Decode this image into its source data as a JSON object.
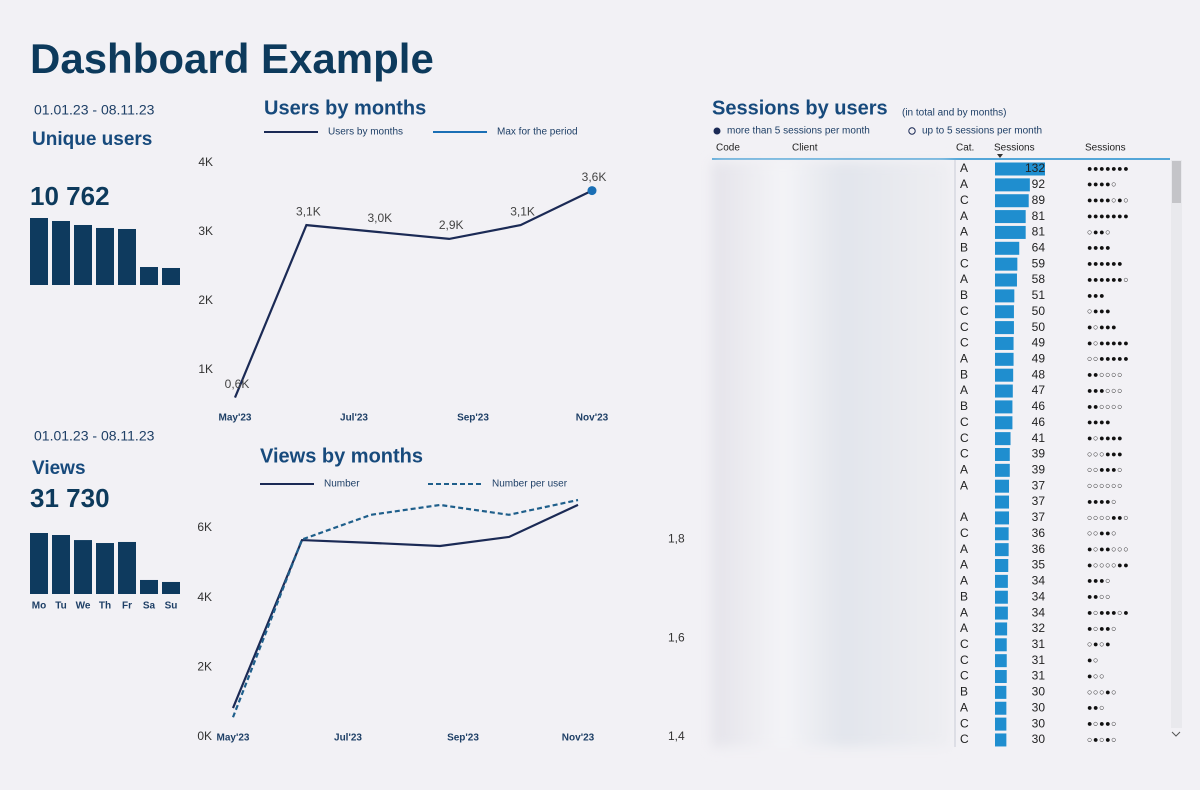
{
  "title": "Dashboard Example",
  "kpis": [
    {
      "period": "01.01.23 - 08.11.23",
      "label": "Unique users",
      "value": "10 762"
    },
    {
      "period": "01.01.23 - 08.11.23",
      "label": "Views",
      "value": "31 730"
    }
  ],
  "chart_data": [
    {
      "type": "bar",
      "values": [
        2127,
        2032,
        1905,
        1810,
        1778,
        571,
        540
      ],
      "color": "#0e3a5e"
    },
    {
      "type": "line",
      "title": "Users by months",
      "x": [
        0,
        1.2,
        2.4,
        3.6,
        4.8,
        6
      ],
      "xlim": [
        0,
        6
      ],
      "xticks": [
        {
          "value": 0,
          "label": "May'23"
        },
        {
          "value": 2,
          "label": "Jul'23"
        },
        {
          "value": 4,
          "label": "Sep'23"
        },
        {
          "value": 6,
          "label": "Nov'23"
        }
      ],
      "ylim": [
        500,
        4000
      ],
      "yticks": [
        {
          "value": 1000,
          "label": "1K"
        },
        {
          "value": 2000,
          "label": "2K"
        },
        {
          "value": 3000,
          "label": "3K"
        },
        {
          "value": 4000,
          "label": "4K"
        }
      ],
      "series": [
        {
          "name": "Users by months",
          "color": "#1b2a55",
          "values": [
            600,
            3100,
            3000,
            2900,
            3100,
            3600
          ],
          "value_labels": [
            "0,6K",
            "3,1K",
            "3,0K",
            "2,9K",
            "3,1K",
            "3,6K"
          ]
        },
        {
          "name": "Max for the period",
          "color": "#1a6fb5",
          "marker": true,
          "values": [
            null,
            null,
            null,
            null,
            null,
            3600
          ]
        }
      ]
    },
    {
      "type": "bar",
      "categories": [
        "Mo",
        "Tu",
        "We",
        "Th",
        "Fr",
        "Sa",
        "Su"
      ],
      "values": [
        6390,
        6180,
        5650,
        5340,
        5450,
        1470,
        1260
      ],
      "color": "#0e3a5e"
    },
    {
      "type": "line",
      "title": "Views by months",
      "x": [
        0,
        1.2,
        2.4,
        3.6,
        4.8,
        6
      ],
      "xlim": [
        0,
        6
      ],
      "xticks": [
        {
          "value": 0,
          "label": "May'23"
        },
        {
          "value": 2,
          "label": "Jul'23"
        },
        {
          "value": 4,
          "label": "Sep'23"
        },
        {
          "value": 6,
          "label": "Nov'23"
        }
      ],
      "ylim": [
        0,
        6800
      ],
      "yticks": [
        {
          "value": 0,
          "label": "0K"
        },
        {
          "value": 2000,
          "label": "2K"
        },
        {
          "value": 4000,
          "label": "4K"
        },
        {
          "value": 6000,
          "label": "6K"
        }
      ],
      "y2lim": [
        1.4,
        1.88
      ],
      "y2ticks": [
        {
          "value": 1.4,
          "label": "1,4"
        },
        {
          "value": 1.6,
          "label": "1,6"
        },
        {
          "value": 1.8,
          "label": "1,8"
        }
      ],
      "series": [
        {
          "name": "Number",
          "color": "#1b2a55",
          "values": [
            830,
            5650,
            5570,
            5480,
            5740,
            6660
          ]
        },
        {
          "name": "Number per user",
          "color": "#1f5f8b",
          "dashed": true,
          "axis": "y2",
          "values": [
            1.44,
            1.8,
            1.85,
            1.87,
            1.85,
            1.88
          ]
        }
      ]
    }
  ],
  "table": {
    "title": "Sessions by users",
    "subtitle": "(in total and by months)",
    "legend": [
      "more than 5 sessions per month",
      "up to 5 sessions per month"
    ],
    "columns": [
      "Code",
      "Client",
      "Cat.",
      "Sessions",
      "Sessions"
    ],
    "bar_color": "#1f8ecf",
    "rows": [
      {
        "cat": "A",
        "sessions": 132,
        "months": "●●●●●●●"
      },
      {
        "cat": "A",
        "sessions": 92,
        "months": "●●●●○"
      },
      {
        "cat": "C",
        "sessions": 89,
        "months": "●●●●○●○"
      },
      {
        "cat": "A",
        "sessions": 81,
        "months": "●●●●●●●"
      },
      {
        "cat": "A",
        "sessions": 81,
        "months": "○●●○"
      },
      {
        "cat": "B",
        "sessions": 64,
        "months": "●●●●"
      },
      {
        "cat": "C",
        "sessions": 59,
        "months": "●●●●●●"
      },
      {
        "cat": "A",
        "sessions": 58,
        "months": "●●●●●●○"
      },
      {
        "cat": "B",
        "sessions": 51,
        "months": "●●●"
      },
      {
        "cat": "C",
        "sessions": 50,
        "months": "○●●●"
      },
      {
        "cat": "C",
        "sessions": 50,
        "months": "●○●●●"
      },
      {
        "cat": "C",
        "sessions": 49,
        "months": "●○●●●●●"
      },
      {
        "cat": "A",
        "sessions": 49,
        "months": "○○●●●●●"
      },
      {
        "cat": "B",
        "sessions": 48,
        "months": "●●○○○○"
      },
      {
        "cat": "A",
        "sessions": 47,
        "months": "●●●○○○"
      },
      {
        "cat": "B",
        "sessions": 46,
        "months": "●●○○○○"
      },
      {
        "cat": "C",
        "sessions": 46,
        "months": "●●●●"
      },
      {
        "cat": "C",
        "sessions": 41,
        "months": "●○●●●●"
      },
      {
        "cat": "C",
        "sessions": 39,
        "months": "○○○●●●"
      },
      {
        "cat": "A",
        "sessions": 39,
        "months": "○○●●●○"
      },
      {
        "cat": "A",
        "sessions": 37,
        "months": "○○○○○○"
      },
      {
        "cat": null,
        "sessions": 37,
        "months": "●●●●○"
      },
      {
        "cat": "A",
        "sessions": 37,
        "months": "○○○○●●○"
      },
      {
        "cat": "C",
        "sessions": 36,
        "months": "○○●●○"
      },
      {
        "cat": "A",
        "sessions": 36,
        "months": "●○●●○○○"
      },
      {
        "cat": "A",
        "sessions": 35,
        "months": "●○○○○●●"
      },
      {
        "cat": "A",
        "sessions": 34,
        "months": "●●●○"
      },
      {
        "cat": "B",
        "sessions": 34,
        "months": "●●○○"
      },
      {
        "cat": "A",
        "sessions": 34,
        "months": "●○●●●○●"
      },
      {
        "cat": "A",
        "sessions": 32,
        "months": "●○●●○"
      },
      {
        "cat": "C",
        "sessions": 31,
        "months": "○●○●"
      },
      {
        "cat": "C",
        "sessions": 31,
        "months": "●○"
      },
      {
        "cat": "C",
        "sessions": 31,
        "months": "●○○"
      },
      {
        "cat": "B",
        "sessions": 30,
        "months": "○○○●○"
      },
      {
        "cat": "A",
        "sessions": 30,
        "months": "●●○"
      },
      {
        "cat": "C",
        "sessions": 30,
        "months": "●○●●○"
      },
      {
        "cat": "C",
        "sessions": 30,
        "months": "○●○●○"
      }
    ]
  }
}
